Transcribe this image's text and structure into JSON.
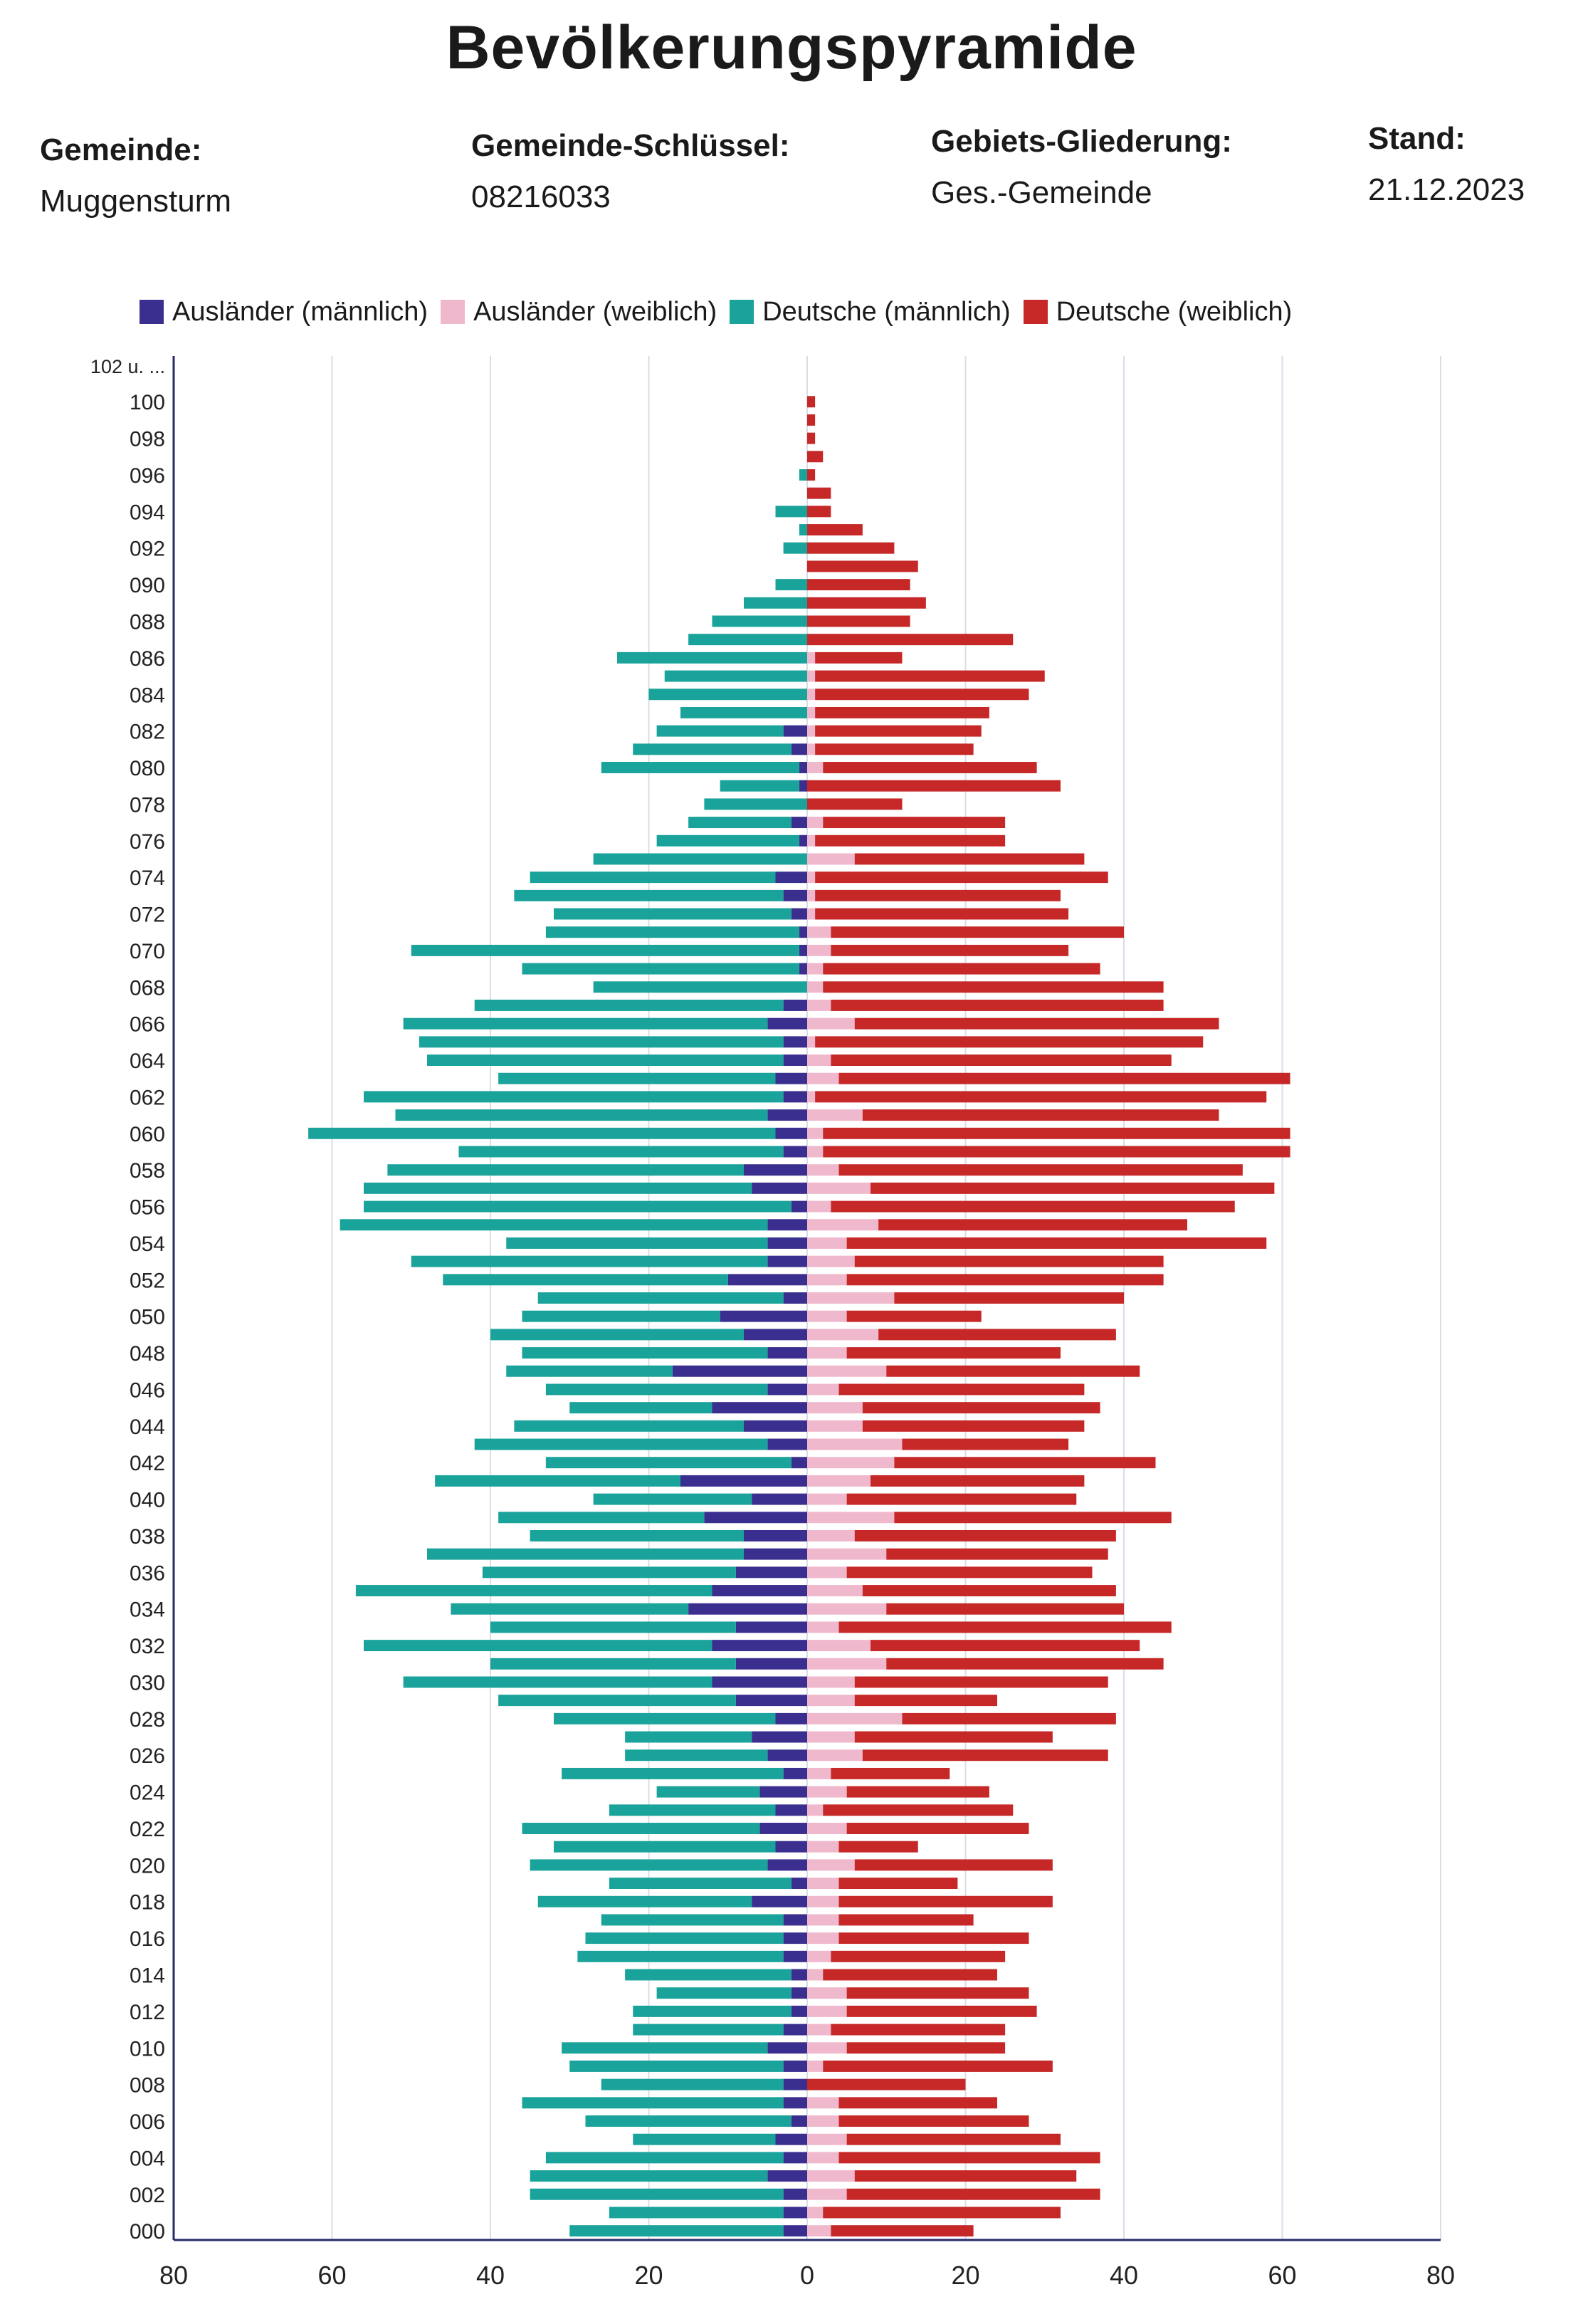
{
  "header": {
    "title": "Bevölkerungspyramide",
    "fields": [
      {
        "label": "Gemeinde:",
        "value": "Muggensturm"
      },
      {
        "label": "Gemeinde-Schlüssel:",
        "value": "08216033"
      },
      {
        "label": "Gebiets-Gliederung:",
        "value": "Ges.-Gemeinde"
      },
      {
        "label": "Stand:",
        "value": "21.12.2023"
      }
    ]
  },
  "chart_data": {
    "type": "bar",
    "orientation": "horizontal-pyramid",
    "legend_position": "top",
    "grid": true,
    "xlim": [
      -80,
      80
    ],
    "x_ticks": [
      "80",
      "60",
      "40",
      "20",
      "0",
      "20",
      "40",
      "60",
      "80"
    ],
    "y_tick_labels": [
      "102 u. ...",
      "100",
      "098",
      "096",
      "094",
      "092",
      "090",
      "088",
      "086",
      "084",
      "082",
      "080",
      "078",
      "076",
      "074",
      "072",
      "070",
      "068",
      "066",
      "064",
      "062",
      "060",
      "058",
      "056",
      "054",
      "052",
      "050",
      "048",
      "046",
      "044",
      "042",
      "040",
      "038",
      "036",
      "034",
      "032",
      "030",
      "028",
      "026",
      "024",
      "022",
      "020",
      "018",
      "016",
      "014",
      "012",
      "010",
      "008",
      "006",
      "004",
      "002",
      "000"
    ],
    "colors": {
      "auslaender_maennlich": "#3a2f8f",
      "auslaender_weiblich": "#f0b8cc",
      "deutsche_maennlich": "#1aa39a",
      "deutsche_weiblich": "#c62828"
    },
    "series": [
      {
        "key": "auslaender_maennlich",
        "name": "Ausländer (männlich)"
      },
      {
        "key": "auslaender_weiblich",
        "name": "Ausländer (weiblich)"
      },
      {
        "key": "deutsche_maennlich",
        "name": "Deutsche (männlich)"
      },
      {
        "key": "deutsche_weiblich",
        "name": "Deutsche (weiblich)"
      }
    ],
    "ages": [
      "000",
      "001",
      "002",
      "003",
      "004",
      "005",
      "006",
      "007",
      "008",
      "009",
      "010",
      "011",
      "012",
      "013",
      "014",
      "015",
      "016",
      "017",
      "018",
      "019",
      "020",
      "021",
      "022",
      "023",
      "024",
      "025",
      "026",
      "027",
      "028",
      "029",
      "030",
      "031",
      "032",
      "033",
      "034",
      "035",
      "036",
      "037",
      "038",
      "039",
      "040",
      "041",
      "042",
      "043",
      "044",
      "045",
      "046",
      "047",
      "048",
      "049",
      "050",
      "051",
      "052",
      "053",
      "054",
      "055",
      "056",
      "057",
      "058",
      "059",
      "060",
      "061",
      "062",
      "063",
      "064",
      "065",
      "066",
      "067",
      "068",
      "069",
      "070",
      "071",
      "072",
      "073",
      "074",
      "075",
      "076",
      "077",
      "078",
      "079",
      "080",
      "081",
      "082",
      "083",
      "084",
      "085",
      "086",
      "087",
      "088",
      "089",
      "090",
      "091",
      "092",
      "093",
      "094",
      "095",
      "096",
      "097",
      "098",
      "099",
      "100",
      "101",
      "102 u. ..."
    ],
    "male_total": [
      30,
      25,
      35,
      35,
      33,
      22,
      28,
      36,
      26,
      30,
      31,
      22,
      22,
      19,
      23,
      29,
      28,
      26,
      34,
      25,
      35,
      32,
      36,
      25,
      19,
      31,
      23,
      23,
      32,
      39,
      51,
      40,
      56,
      40,
      45,
      57,
      41,
      48,
      35,
      39,
      27,
      47,
      33,
      42,
      37,
      30,
      33,
      38,
      36,
      40,
      36,
      34,
      46,
      50,
      38,
      59,
      56,
      56,
      53,
      44,
      63,
      52,
      56,
      39,
      48,
      49,
      51,
      42,
      27,
      36,
      50,
      33,
      32,
      37,
      35,
      27,
      19,
      15,
      13,
      11,
      26,
      22,
      19,
      16,
      20,
      18,
      24,
      15,
      12,
      8,
      4,
      0,
      3,
      1,
      4,
      0,
      1,
      0,
      0,
      0,
      0,
      0,
      0
    ],
    "male_foreign": [
      3,
      3,
      3,
      5,
      3,
      4,
      2,
      3,
      3,
      3,
      5,
      3,
      2,
      2,
      2,
      3,
      3,
      3,
      7,
      2,
      5,
      4,
      6,
      4,
      6,
      3,
      5,
      7,
      4,
      9,
      12,
      9,
      12,
      9,
      15,
      12,
      9,
      8,
      8,
      13,
      7,
      16,
      2,
      5,
      8,
      12,
      5,
      17,
      5,
      8,
      11,
      3,
      10,
      5,
      5,
      5,
      2,
      7,
      8,
      3,
      4,
      5,
      3,
      4,
      3,
      3,
      5,
      3,
      0,
      1,
      1,
      1,
      2,
      3,
      4,
      0,
      1,
      2,
      0,
      1,
      1,
      2,
      3,
      0,
      0,
      0,
      0,
      0,
      0,
      0,
      0,
      0,
      0,
      0,
      0,
      0,
      0,
      0,
      0,
      0,
      0,
      0,
      0
    ],
    "female_total": [
      21,
      32,
      37,
      34,
      37,
      32,
      28,
      24,
      20,
      31,
      25,
      25,
      29,
      28,
      24,
      25,
      28,
      21,
      31,
      19,
      31,
      14,
      28,
      26,
      23,
      18,
      38,
      31,
      39,
      24,
      38,
      45,
      42,
      46,
      40,
      39,
      36,
      38,
      39,
      46,
      34,
      35,
      44,
      33,
      35,
      37,
      35,
      42,
      32,
      39,
      22,
      40,
      45,
      45,
      58,
      48,
      54,
      59,
      55,
      61,
      61,
      52,
      58,
      61,
      46,
      50,
      52,
      45,
      45,
      37,
      33,
      40,
      33,
      32,
      38,
      35,
      25,
      25,
      12,
      32,
      29,
      21,
      22,
      23,
      28,
      30,
      12,
      26,
      13,
      15,
      13,
      14,
      11,
      7,
      3,
      3,
      1,
      2,
      1,
      1,
      1,
      0,
      0
    ],
    "female_foreign": [
      3,
      2,
      5,
      6,
      4,
      5,
      4,
      4,
      0,
      2,
      5,
      3,
      5,
      5,
      2,
      3,
      4,
      4,
      4,
      4,
      6,
      4,
      5,
      2,
      5,
      3,
      7,
      6,
      12,
      6,
      6,
      10,
      8,
      4,
      10,
      7,
      5,
      10,
      6,
      11,
      5,
      8,
      11,
      12,
      7,
      7,
      4,
      10,
      5,
      9,
      5,
      11,
      5,
      6,
      5,
      9,
      3,
      8,
      4,
      2,
      2,
      7,
      1,
      4,
      3,
      1,
      6,
      3,
      2,
      2,
      3,
      3,
      1,
      1,
      1,
      6,
      1,
      2,
      0,
      0,
      2,
      1,
      1,
      1,
      1,
      1,
      1,
      0,
      0,
      0,
      0,
      0,
      0,
      0,
      0,
      0,
      0,
      0,
      0,
      0,
      0,
      0,
      0
    ]
  }
}
